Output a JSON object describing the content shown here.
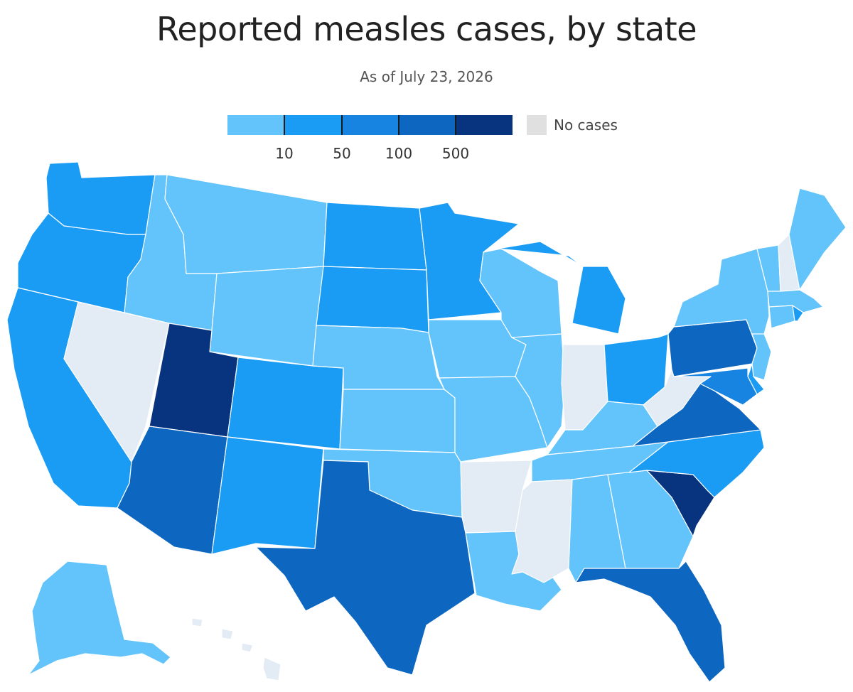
{
  "title": "Reported measles cases, by state",
  "subtitle": "As of July 23, 2026",
  "legend": {
    "colors": [
      "#63c4fb",
      "#1a9cf5",
      "#1684e0",
      "#0d66c0",
      "#08337f"
    ],
    "no_cases_color": "#e0e0e0",
    "thresholds": [
      "10",
      "50",
      "100",
      "500"
    ],
    "no_cases_label": "No cases"
  },
  "map_data": {
    "type": "choropleth",
    "states": [
      {
        "name": "WA",
        "bin": 1
      },
      {
        "name": "OR",
        "bin": 1
      },
      {
        "name": "CA",
        "bin": 1
      },
      {
        "name": "NV",
        "bin": -1
      },
      {
        "name": "ID",
        "bin": 0
      },
      {
        "name": "MT",
        "bin": 0
      },
      {
        "name": "WY",
        "bin": 0
      },
      {
        "name": "UT",
        "bin": 4
      },
      {
        "name": "AZ",
        "bin": 3
      },
      {
        "name": "CO",
        "bin": 1
      },
      {
        "name": "NM",
        "bin": 1
      },
      {
        "name": "ND",
        "bin": 1
      },
      {
        "name": "SD",
        "bin": 1
      },
      {
        "name": "NE",
        "bin": 0
      },
      {
        "name": "KS",
        "bin": 0
      },
      {
        "name": "OK",
        "bin": 0
      },
      {
        "name": "TX",
        "bin": 3
      },
      {
        "name": "MN",
        "bin": 1
      },
      {
        "name": "IA",
        "bin": 0
      },
      {
        "name": "MO",
        "bin": 0
      },
      {
        "name": "AR",
        "bin": -1
      },
      {
        "name": "LA",
        "bin": 0
      },
      {
        "name": "WI",
        "bin": 0
      },
      {
        "name": "IL",
        "bin": 0
      },
      {
        "name": "MI",
        "bin": 1
      },
      {
        "name": "IN",
        "bin": -1
      },
      {
        "name": "OH",
        "bin": 1
      },
      {
        "name": "KY",
        "bin": 0
      },
      {
        "name": "TN",
        "bin": 0
      },
      {
        "name": "MS",
        "bin": -1
      },
      {
        "name": "AL",
        "bin": 0
      },
      {
        "name": "GA",
        "bin": 0
      },
      {
        "name": "FL",
        "bin": 3
      },
      {
        "name": "SC",
        "bin": 4
      },
      {
        "name": "NC",
        "bin": 1
      },
      {
        "name": "VA",
        "bin": 3
      },
      {
        "name": "WV",
        "bin": -1
      },
      {
        "name": "PA",
        "bin": 3
      },
      {
        "name": "NY",
        "bin": 0
      },
      {
        "name": "VT",
        "bin": 0
      },
      {
        "name": "NH",
        "bin": -1
      },
      {
        "name": "ME",
        "bin": 0
      },
      {
        "name": "MA",
        "bin": 0
      },
      {
        "name": "CT",
        "bin": 0
      },
      {
        "name": "RI",
        "bin": 1
      },
      {
        "name": "NJ",
        "bin": 0
      },
      {
        "name": "DE",
        "bin": 1
      },
      {
        "name": "MD",
        "bin": 2
      },
      {
        "name": "AK",
        "bin": 0
      },
      {
        "name": "HI",
        "bin": -1
      }
    ]
  }
}
